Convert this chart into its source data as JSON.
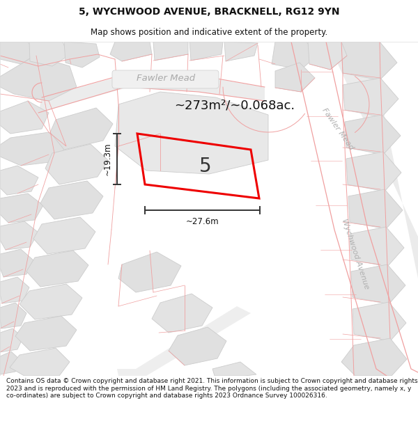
{
  "title": "5, WYCHWOOD AVENUE, BRACKNELL, RG12 9YN",
  "subtitle": "Map shows position and indicative extent of the property.",
  "area_text": "~273m²/~0.068ac.",
  "property_number": "5",
  "width_label": "~27.6m",
  "height_label": "~19.3m",
  "footer": "Contains OS data © Crown copyright and database right 2021. This information is subject to Crown copyright and database rights 2023 and is reproduced with the permission of HM Land Registry. The polygons (including the associated geometry, namely x, y co-ordinates) are subject to Crown copyright and database rights 2023 Ordnance Survey 100026316.",
  "bg_color": "#ffffff",
  "map_bg": "#ffffff",
  "plot_color": "#ff0000",
  "parcel_fill": "#e8e8e8",
  "parcel_edge": "#cccccc",
  "road_line_color": "#f0a0a0",
  "road_label_color": "#aaaaaa",
  "dim_color": "#333333",
  "text_color": "#222222",
  "title_fontsize": 10,
  "subtitle_fontsize": 8.5,
  "footer_fontsize": 6.5
}
